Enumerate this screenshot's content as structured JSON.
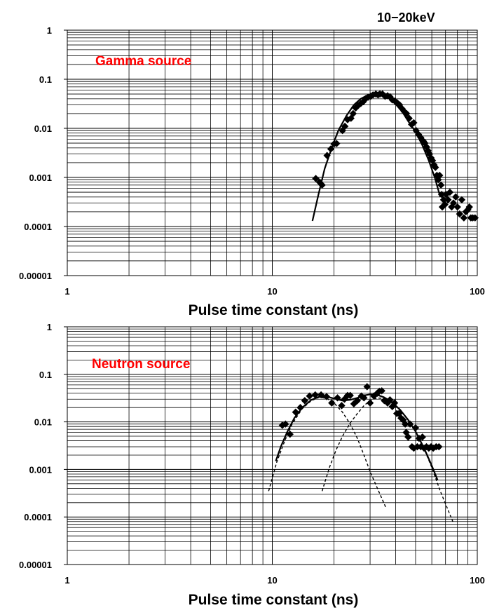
{
  "figure": {
    "corner_label": "10−20keV"
  },
  "chart_data": [
    {
      "type": "scatter",
      "annotation": "Gamma   source",
      "annotation_color": "#ff0000",
      "xlabel": "Pulse time constant (ns)",
      "ylabel": "",
      "x_scale": "log",
      "y_scale": "log",
      "xlim": [
        1,
        100
      ],
      "ylim": [
        1e-05,
        1
      ],
      "x_ticks": [
        {
          "v": 1,
          "label": "1"
        },
        {
          "v": 10,
          "label": "10"
        },
        {
          "v": 100,
          "label": "100"
        }
      ],
      "y_ticks": [
        {
          "v": 1,
          "label": "1"
        },
        {
          "v": 0.1,
          "label": "0.1"
        },
        {
          "v": 0.01,
          "label": "0.01"
        },
        {
          "v": 0.001,
          "label": "0.001"
        },
        {
          "v": 0.0001,
          "label": "0.0001"
        },
        {
          "v": 1e-05,
          "label": "0.00001"
        }
      ],
      "grid": true,
      "series": [
        {
          "kind": "points",
          "marker": "diamond",
          "points": [
            [
              16.3,
              0.00095
            ],
            [
              17.0,
              0.0008
            ],
            [
              17.5,
              0.0007
            ],
            [
              18.5,
              0.0028
            ],
            [
              19.3,
              0.0038
            ],
            [
              20.0,
              0.0048
            ],
            [
              20.6,
              0.0049
            ],
            [
              22.0,
              0.009
            ],
            [
              22.6,
              0.011
            ],
            [
              23.3,
              0.015
            ],
            [
              24.2,
              0.016
            ],
            [
              24.8,
              0.02
            ],
            [
              25.5,
              0.026
            ],
            [
              26.2,
              0.029
            ],
            [
              27.0,
              0.032
            ],
            [
              27.8,
              0.035
            ],
            [
              28.5,
              0.04
            ],
            [
              29.3,
              0.043
            ],
            [
              30.2,
              0.045
            ],
            [
              31.0,
              0.048
            ],
            [
              32.0,
              0.05
            ],
            [
              32.8,
              0.048
            ],
            [
              33.5,
              0.05
            ],
            [
              34.5,
              0.05
            ],
            [
              35.5,
              0.045
            ],
            [
              36.5,
              0.046
            ],
            [
              37.5,
              0.044
            ],
            [
              38.5,
              0.038
            ],
            [
              39.6,
              0.036
            ],
            [
              40.7,
              0.033
            ],
            [
              41.8,
              0.03
            ],
            [
              43.0,
              0.025
            ],
            [
              44.0,
              0.022
            ],
            [
              45.2,
              0.02
            ],
            [
              46.5,
              0.016
            ],
            [
              47.8,
              0.012
            ],
            [
              49.0,
              0.013
            ],
            [
              50.3,
              0.009
            ],
            [
              51.7,
              0.0075
            ],
            [
              53.0,
              0.0065
            ],
            [
              54.5,
              0.0055
            ],
            [
              55.5,
              0.005
            ],
            [
              56.5,
              0.0042
            ],
            [
              57.5,
              0.0035
            ],
            [
              58.5,
              0.003
            ],
            [
              59.5,
              0.0025
            ],
            [
              60.5,
              0.0022
            ],
            [
              61.5,
              0.0018
            ],
            [
              62.5,
              0.0016
            ],
            [
              63.5,
              0.0011
            ],
            [
              64.5,
              0.0009
            ],
            [
              65.5,
              0.0011
            ],
            [
              66.5,
              0.0007
            ],
            [
              67.0,
              0.00045
            ],
            [
              67.5,
              0.00025
            ],
            [
              68.5,
              0.00035
            ],
            [
              69.5,
              0.00028
            ],
            [
              70.5,
              0.00045
            ],
            [
              72.0,
              0.00035
            ],
            [
              73.5,
              0.0005
            ],
            [
              75.0,
              0.00025
            ],
            [
              76.5,
              0.0003
            ],
            [
              78.5,
              0.0004
            ],
            [
              80.0,
              0.00025
            ],
            [
              82.0,
              0.00018
            ],
            [
              84.0,
              0.00035
            ],
            [
              86.0,
              0.00015
            ],
            [
              88.0,
              0.0002
            ],
            [
              90.0,
              0.00022
            ],
            [
              91.5,
              0.00025
            ],
            [
              93.0,
              0.00015
            ],
            [
              95.0,
              0.00015
            ],
            [
              97.5,
              0.00015
            ]
          ]
        },
        {
          "kind": "curve",
          "style": "solid",
          "points": [
            [
              15.7,
              0.00013
            ],
            [
              16.8,
              0.00045
            ],
            [
              18.0,
              0.0015
            ],
            [
              19.5,
              0.004
            ],
            [
              21.0,
              0.009
            ],
            [
              23.0,
              0.018
            ],
            [
              25.0,
              0.03
            ],
            [
              27.0,
              0.04
            ],
            [
              29.0,
              0.047
            ],
            [
              31.0,
              0.05
            ],
            [
              33.0,
              0.05
            ],
            [
              35.0,
              0.047
            ],
            [
              37.5,
              0.04
            ],
            [
              40.0,
              0.031
            ],
            [
              43.0,
              0.022
            ],
            [
              46.0,
              0.014
            ],
            [
              50.0,
              0.0085
            ],
            [
              54.0,
              0.0045
            ],
            [
              58.0,
              0.0022
            ],
            [
              62.0,
              0.001
            ],
            [
              66.0,
              0.0004
            ]
          ]
        }
      ]
    },
    {
      "type": "scatter",
      "annotation": "Neutron   source",
      "annotation_color": "#ff0000",
      "xlabel": "Pulse time constant (ns)",
      "ylabel": "",
      "x_scale": "log",
      "y_scale": "log",
      "xlim": [
        1,
        100
      ],
      "ylim": [
        1e-05,
        1
      ],
      "x_ticks": [
        {
          "v": 1,
          "label": "1"
        },
        {
          "v": 10,
          "label": "10"
        },
        {
          "v": 100,
          "label": "100"
        }
      ],
      "y_ticks": [
        {
          "v": 1,
          "label": "1"
        },
        {
          "v": 0.1,
          "label": "0.1"
        },
        {
          "v": 0.01,
          "label": "0.01"
        },
        {
          "v": 0.001,
          "label": "0.001"
        },
        {
          "v": 0.0001,
          "label": "0.0001"
        },
        {
          "v": 1e-05,
          "label": "0.00001"
        }
      ],
      "grid": true,
      "series": [
        {
          "kind": "points",
          "marker": "diamond",
          "points": [
            [
              11.2,
              0.0085
            ],
            [
              11.6,
              0.009
            ],
            [
              12.2,
              0.0055
            ],
            [
              13.0,
              0.016
            ],
            [
              13.7,
              0.02
            ],
            [
              14.4,
              0.028
            ],
            [
              15.2,
              0.035
            ],
            [
              16.2,
              0.037
            ],
            [
              17.3,
              0.037
            ],
            [
              18.4,
              0.034
            ],
            [
              19.5,
              0.025
            ],
            [
              20.8,
              0.032
            ],
            [
              21.8,
              0.022
            ],
            [
              22.5,
              0.03
            ],
            [
              23.3,
              0.036
            ],
            [
              24.0,
              0.036
            ],
            [
              25.0,
              0.024
            ],
            [
              26.0,
              0.028
            ],
            [
              27.2,
              0.035
            ],
            [
              28.0,
              0.032
            ],
            [
              29.0,
              0.055
            ],
            [
              30.0,
              0.025
            ],
            [
              31.3,
              0.035
            ],
            [
              32.5,
              0.04
            ],
            [
              33.3,
              0.044
            ],
            [
              34.2,
              0.045
            ],
            [
              35.2,
              0.028
            ],
            [
              36.5,
              0.025
            ],
            [
              37.5,
              0.029
            ],
            [
              38.5,
              0.021
            ],
            [
              39.5,
              0.025
            ],
            [
              40.5,
              0.015
            ],
            [
              41.5,
              0.015
            ],
            [
              42.5,
              0.012
            ],
            [
              43.5,
              0.011
            ],
            [
              44.5,
              0.009
            ],
            [
              45.0,
              0.006
            ],
            [
              46.0,
              0.0048
            ],
            [
              47.0,
              0.009
            ],
            [
              48.0,
              0.003
            ],
            [
              49.0,
              0.0028
            ],
            [
              50.0,
              0.0075
            ],
            [
              51.0,
              0.003
            ],
            [
              52.0,
              0.0045
            ],
            [
              53.0,
              0.003
            ],
            [
              54.0,
              0.0048
            ],
            [
              55.0,
              0.0028
            ],
            [
              56.5,
              0.003
            ],
            [
              58.0,
              0.0028
            ],
            [
              59.5,
              0.003
            ],
            [
              61.0,
              0.0028
            ],
            [
              63.0,
              0.003
            ],
            [
              65.0,
              0.003
            ]
          ]
        },
        {
          "kind": "curve",
          "style": "dashed",
          "points": [
            [
              9.6,
              0.00035
            ],
            [
              10.5,
              0.0014
            ],
            [
              11.5,
              0.004
            ],
            [
              12.5,
              0.009
            ],
            [
              14.0,
              0.019
            ],
            [
              15.5,
              0.028
            ],
            [
              17.0,
              0.033
            ],
            [
              18.5,
              0.031
            ],
            [
              20.0,
              0.025
            ],
            [
              22.0,
              0.016
            ],
            [
              24.0,
              0.009
            ],
            [
              26.0,
              0.0045
            ],
            [
              28.0,
              0.002
            ],
            [
              30.0,
              0.0009
            ],
            [
              33.0,
              0.00035
            ],
            [
              36.0,
              0.00015
            ]
          ]
        },
        {
          "kind": "curve",
          "style": "dashed",
          "points": [
            [
              17.5,
              0.00035
            ],
            [
              19.0,
              0.0011
            ],
            [
              20.5,
              0.0026
            ],
            [
              22.0,
              0.005
            ],
            [
              24.0,
              0.0095
            ],
            [
              26.0,
              0.015
            ],
            [
              28.0,
              0.022
            ],
            [
              30.0,
              0.028
            ],
            [
              32.5,
              0.032
            ],
            [
              35.0,
              0.031
            ],
            [
              38.0,
              0.026
            ],
            [
              42.0,
              0.018
            ],
            [
              46.0,
              0.011
            ],
            [
              50.0,
              0.0062
            ],
            [
              55.0,
              0.0027
            ],
            [
              60.0,
              0.0011
            ],
            [
              66.0,
              0.00035
            ],
            [
              72.0,
              0.00014
            ],
            [
              76.0,
              8e-05
            ]
          ]
        },
        {
          "kind": "curve",
          "style": "solid",
          "points": [
            [
              10.4,
              0.0015
            ],
            [
              11.0,
              0.003
            ],
            [
              11.8,
              0.006
            ],
            [
              12.8,
              0.012
            ],
            [
              14.0,
              0.02
            ],
            [
              15.5,
              0.029
            ],
            [
              17.0,
              0.034
            ],
            [
              18.5,
              0.034
            ],
            [
              20.0,
              0.031
            ],
            [
              22.0,
              0.028
            ],
            [
              24.0,
              0.029
            ],
            [
              26.0,
              0.032
            ],
            [
              28.0,
              0.036
            ],
            [
              30.0,
              0.038
            ],
            [
              32.5,
              0.037
            ],
            [
              35.0,
              0.033
            ],
            [
              38.0,
              0.027
            ],
            [
              42.0,
              0.018
            ],
            [
              46.0,
              0.011
            ],
            [
              50.0,
              0.0063
            ],
            [
              55.0,
              0.0028
            ],
            [
              60.0,
              0.0012
            ],
            [
              64.0,
              0.0006
            ]
          ]
        }
      ]
    }
  ]
}
